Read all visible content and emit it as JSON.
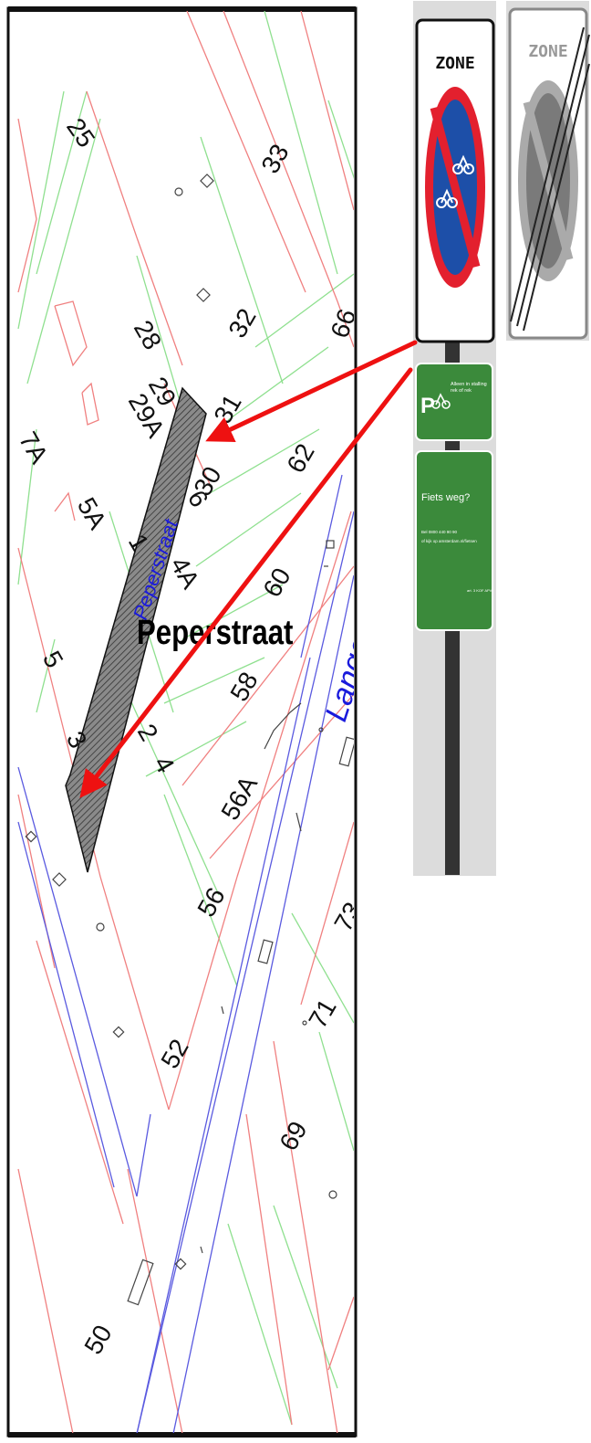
{
  "map": {
    "street_name_label": "Peperstraat",
    "street_name_rotated": "Peperstraat",
    "street_lange_partial": "Lange",
    "lot_numbers": [
      "25",
      "33",
      "28",
      "29",
      "29A",
      "32",
      "31",
      "30",
      "66",
      "7A",
      "5A",
      "1",
      "4A",
      "6",
      "62",
      "60",
      "5",
      "58",
      "3",
      "2",
      "4",
      "56A",
      "56",
      "52",
      "50",
      "69",
      "71",
      "73"
    ]
  },
  "signs": {
    "zone_start_label": "ZONE",
    "zone_end_label": "ZONE",
    "green_sign_1_text": "Alleen in stalling rek of rek",
    "green_sign_1_symbol": "P",
    "green_sign_2_title": "Fiets weg?",
    "green_sign_2_line1": "Bel 0800 440 90 90",
    "green_sign_2_line2": "of kijk op amsterdam.nl/fietsen",
    "green_sign_2_small": "art. 3 KOF APV"
  },
  "colors": {
    "parcel_red": "#f08080",
    "parcel_green": "#8fe08f",
    "road_blue": "#5a5ae0",
    "arrow_red": "#ee1111",
    "sign_green": "#3b8a3b",
    "hatched_street": "#777777"
  }
}
